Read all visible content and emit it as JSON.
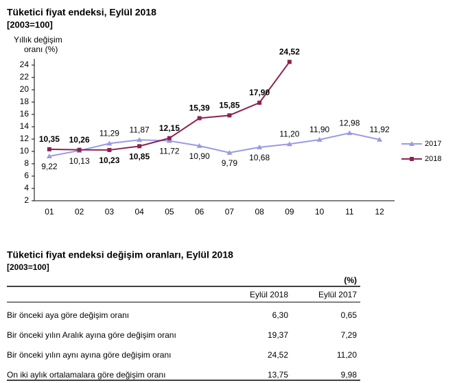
{
  "chart_data": {
    "type": "line",
    "title": "Tüketici fiyat endeksi, Eylül 2018",
    "subtitle": "[2003=100]",
    "y_label": [
      "Yıllık değişim",
      "oranı (%)"
    ],
    "categories": [
      "01",
      "02",
      "03",
      "04",
      "05",
      "06",
      "07",
      "08",
      "09",
      "10",
      "11",
      "12"
    ],
    "series": [
      {
        "name": "2017",
        "color": "#9999e6",
        "marker": "triangle",
        "values": [
          9.22,
          10.13,
          11.29,
          11.87,
          11.72,
          10.9,
          9.79,
          10.68,
          11.2,
          11.9,
          12.98,
          11.92
        ],
        "value_labels": [
          "9,22",
          "10,13",
          "11,29",
          "11,87",
          "11,72",
          "10,90",
          "9,79",
          "10,68",
          "11,20",
          "11,90",
          "12,98",
          "11,92"
        ]
      },
      {
        "name": "2018",
        "color": "#8b2252",
        "marker": "square",
        "values": [
          10.35,
          10.26,
          10.23,
          10.85,
          12.15,
          15.39,
          15.85,
          17.9,
          24.52,
          null,
          null,
          null
        ],
        "value_labels": [
          "10,35",
          "10,26",
          "10,23",
          "10,85",
          "12,15",
          "15,39",
          "15,85",
          "17,90",
          "24,52",
          null,
          null,
          null
        ]
      }
    ],
    "ylim": [
      2,
      25
    ],
    "yticks": [
      2,
      4,
      6,
      8,
      10,
      12,
      14,
      16,
      18,
      20,
      22,
      24
    ],
    "legend": "right"
  },
  "table": {
    "title": "Tüketici fiyat endeksi değişim oranları, Eylül 2018",
    "subtitle": "[2003=100]",
    "unit": "(%)",
    "headers": [
      "Eylül 2018",
      "Eylül 2017"
    ],
    "rows": [
      [
        "Bir önceki aya göre değişim oranı",
        "6,30",
        "0,65"
      ],
      [
        "Bir önceki yılın Aralık ayına göre değişim oranı",
        "19,37",
        "7,29"
      ],
      [
        "Bir önceki yılın aynı ayına göre değişim oranı",
        "24,52",
        "11,20"
      ],
      [
        "On iki aylık ortalamalara göre değişim oranı",
        "13,75",
        "9,98"
      ]
    ]
  }
}
